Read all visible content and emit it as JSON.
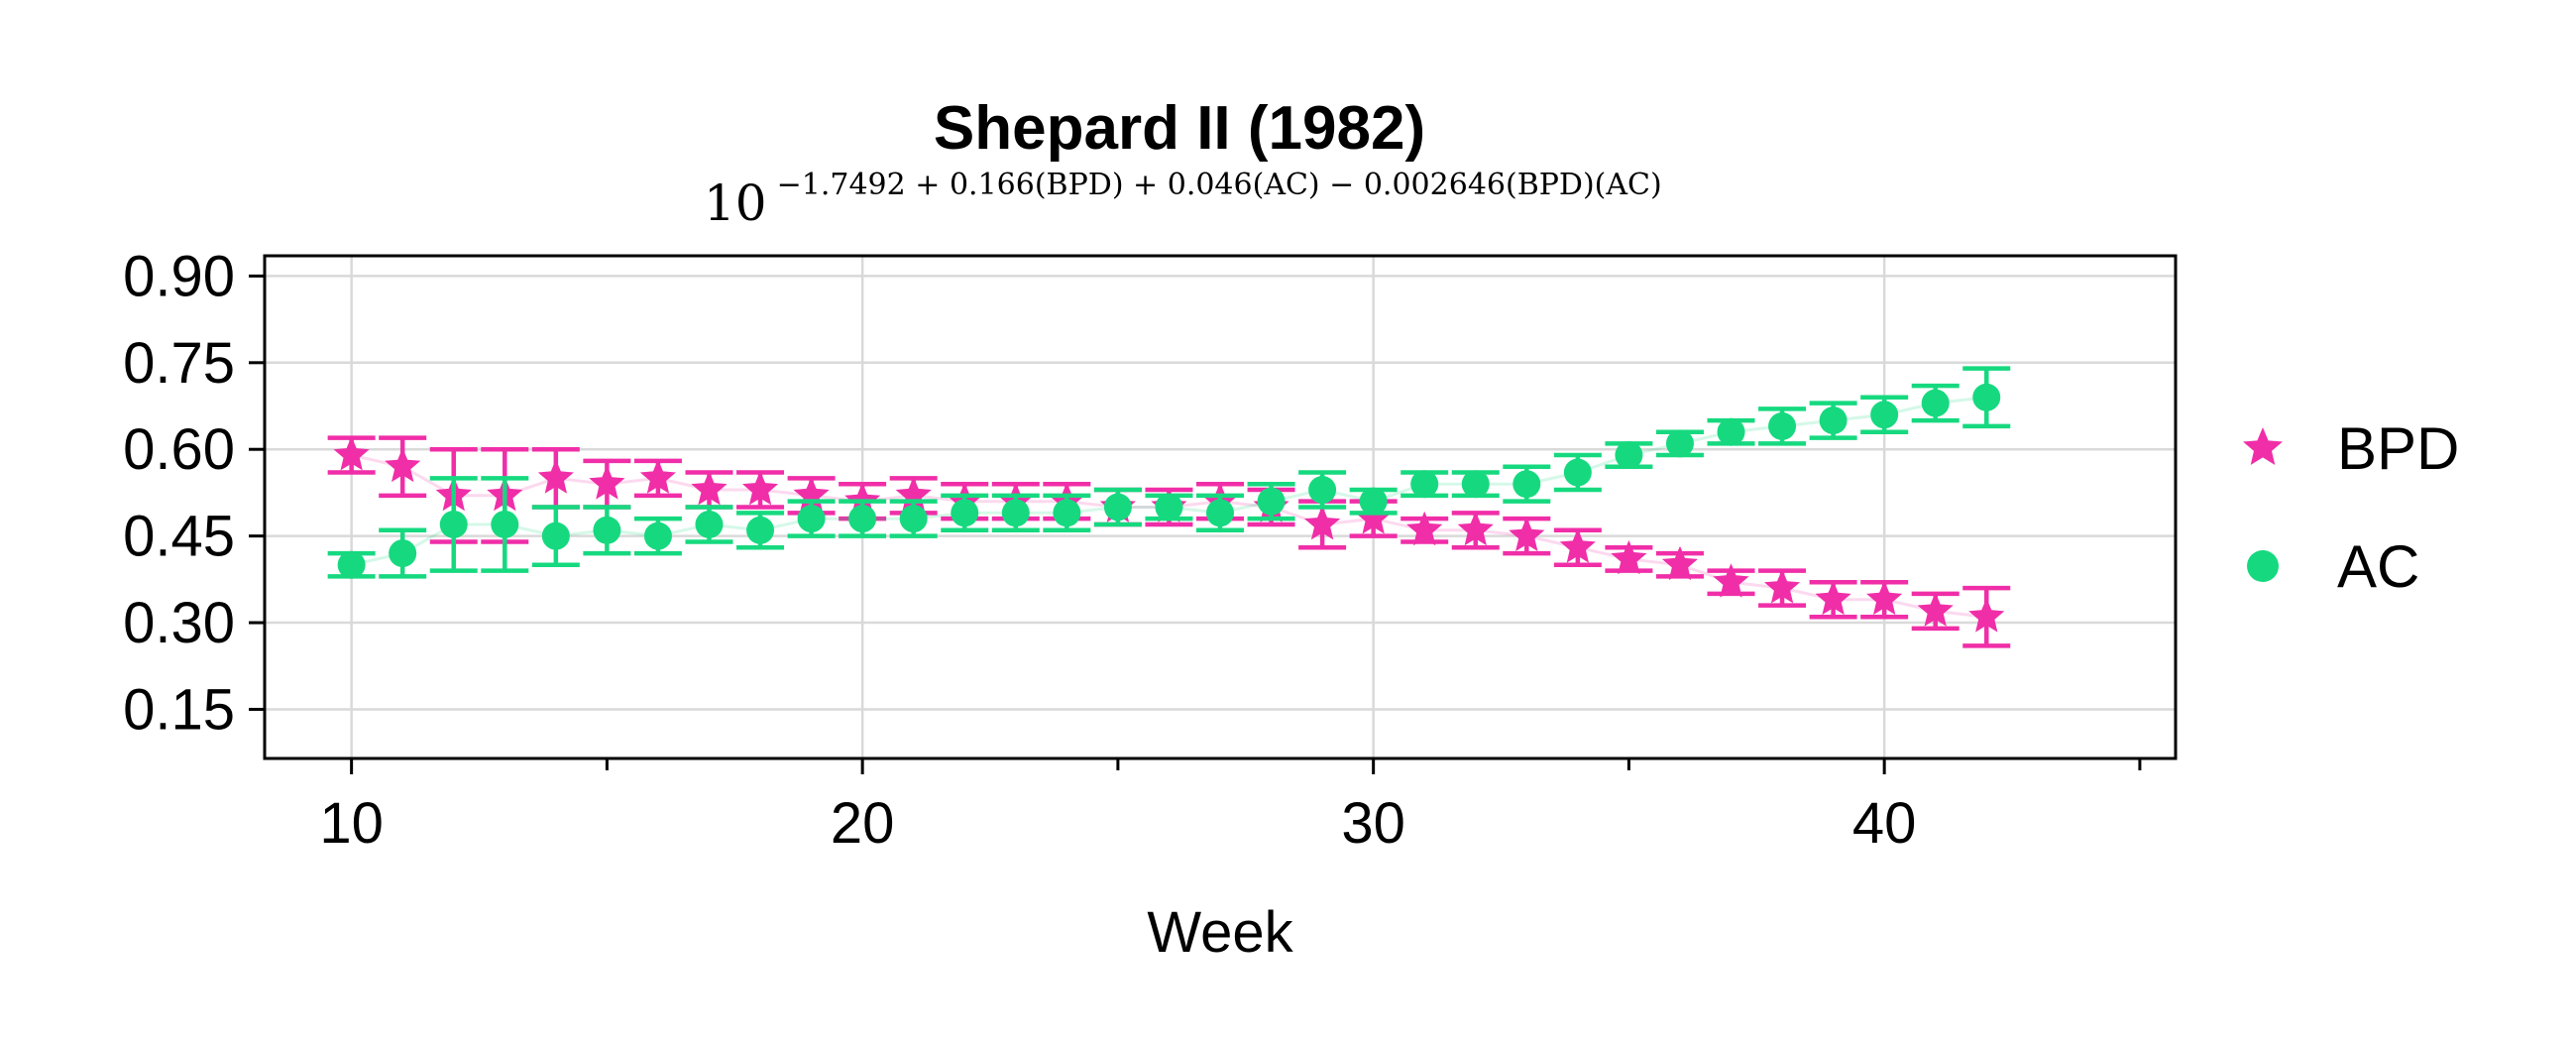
{
  "colors": {
    "bpd": "#f02ea8",
    "ac": "#16d97f",
    "grid": "#d9d9d9",
    "axis": "#000000"
  },
  "chart_data": {
    "type": "scatter",
    "title": "Shepard II (1982)",
    "subtitle_base": "10",
    "subtitle_exponent": "−1.7492 + 0.166(BPD) + 0.046(AC) − 0.002646(BPD)(AC)",
    "xlabel": "Week",
    "ylabel": "",
    "xlim": [
      8.3,
      45.7
    ],
    "ylim": [
      0.065,
      0.935
    ],
    "x_ticks": [
      10,
      20,
      30,
      40
    ],
    "x_minor_ticks": [
      15,
      25,
      35,
      45
    ],
    "y_ticks": [
      0.15,
      0.3,
      0.45,
      0.6,
      0.75,
      0.9
    ],
    "y_tick_labels": [
      "0.15",
      "0.30",
      "0.45",
      "0.60",
      "0.75",
      "0.90"
    ],
    "grid": true,
    "legend_position": "right",
    "series": [
      {
        "name": "BPD",
        "marker": "star",
        "color": "#f02ea8",
        "x": [
          10,
          11,
          12,
          13,
          14,
          15,
          16,
          17,
          18,
          19,
          20,
          21,
          22,
          23,
          24,
          25,
          26,
          27,
          28,
          29,
          30,
          31,
          32,
          33,
          34,
          35,
          36,
          37,
          38,
          39,
          40,
          41,
          42
        ],
        "y": [
          0.59,
          0.57,
          0.52,
          0.52,
          0.55,
          0.54,
          0.55,
          0.53,
          0.53,
          0.52,
          0.51,
          0.52,
          0.51,
          0.51,
          0.51,
          0.5,
          0.5,
          0.51,
          0.5,
          0.47,
          0.48,
          0.46,
          0.46,
          0.45,
          0.43,
          0.41,
          0.4,
          0.37,
          0.36,
          0.34,
          0.34,
          0.32,
          0.31
        ],
        "err": [
          0.03,
          0.05,
          0.08,
          0.08,
          0.05,
          0.04,
          0.03,
          0.03,
          0.03,
          0.03,
          0.03,
          0.03,
          0.03,
          0.03,
          0.03,
          0.03,
          0.03,
          0.03,
          0.03,
          0.04,
          0.03,
          0.02,
          0.03,
          0.03,
          0.03,
          0.02,
          0.02,
          0.02,
          0.03,
          0.03,
          0.03,
          0.03,
          0.05
        ]
      },
      {
        "name": "AC",
        "marker": "circle",
        "color": "#16d97f",
        "x": [
          10,
          11,
          12,
          13,
          14,
          15,
          16,
          17,
          18,
          19,
          20,
          21,
          22,
          23,
          24,
          25,
          26,
          27,
          28,
          29,
          30,
          31,
          32,
          33,
          34,
          35,
          36,
          37,
          38,
          39,
          40,
          41,
          42
        ],
        "y": [
          0.4,
          0.42,
          0.47,
          0.47,
          0.45,
          0.46,
          0.45,
          0.47,
          0.46,
          0.48,
          0.48,
          0.48,
          0.49,
          0.49,
          0.49,
          0.5,
          0.5,
          0.49,
          0.51,
          0.53,
          0.51,
          0.54,
          0.54,
          0.54,
          0.56,
          0.59,
          0.61,
          0.63,
          0.64,
          0.65,
          0.66,
          0.68,
          0.69
        ],
        "err": [
          0.02,
          0.04,
          0.08,
          0.08,
          0.05,
          0.04,
          0.03,
          0.03,
          0.03,
          0.03,
          0.03,
          0.03,
          0.03,
          0.03,
          0.03,
          0.03,
          0.02,
          0.03,
          0.03,
          0.03,
          0.02,
          0.02,
          0.02,
          0.03,
          0.03,
          0.02,
          0.02,
          0.02,
          0.03,
          0.03,
          0.03,
          0.03,
          0.05
        ]
      }
    ]
  }
}
